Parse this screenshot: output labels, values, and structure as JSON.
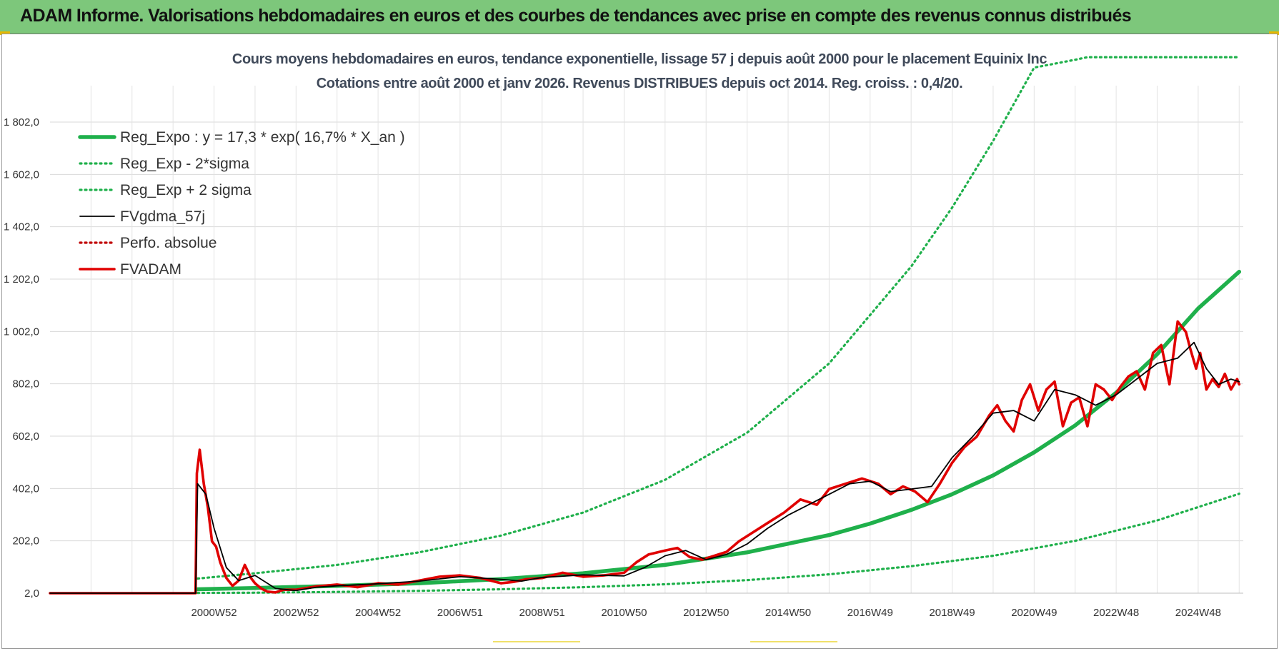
{
  "banner": {
    "title": "ADAM Informe. Valorisations hebdomadaires en euros et des courbes de tendances avec prise en compte des revenus connus distribués"
  },
  "chart_data": {
    "type": "line",
    "title": "Cours moyens hebdomadaires en euros, tendance exponentielle, lissage 57 j depuis août 2000 pour le placement Equinix Inc",
    "subtitle": "Cotations entre août 2000 et janv 2026. Revenus DISTRIBUES depuis oct 2014. Reg. croiss. : 0,4/20.",
    "ylim": [
      2,
      2050
    ],
    "yticks": [
      "2,0",
      "202,0",
      "402,0",
      "602,0",
      "802,0",
      "1 002,0",
      "1 202,0",
      "1 402,0",
      "1 602,0",
      "1 802,0"
    ],
    "ytick_values": [
      2,
      202,
      402,
      602,
      802,
      1002,
      1202,
      1402,
      1602,
      1802
    ],
    "xlim": [
      1997.0,
      2026.1
    ],
    "xticks": [
      "2000W52",
      "2002W52",
      "2004W52",
      "2006W51",
      "2008W51",
      "2010W50",
      "2012W50",
      "2014W50",
      "2016W49",
      "2018W49",
      "2020W49",
      "2022W48",
      "2024W48"
    ],
    "xtick_values": [
      2001.0,
      2003.0,
      2005.0,
      2007.0,
      2009.0,
      2011.0,
      2013.0,
      2015.0,
      2017.0,
      2019.0,
      2021.0,
      2023.0,
      2025.0
    ],
    "grid": true,
    "legend_position": "top-left",
    "series": [
      {
        "name": "Reg_Expo : y = 17,3 * exp( 16,7% *  X_an )",
        "color": "#1fb04b",
        "style": "solid",
        "x": [
          2000.6,
          2002,
          2004,
          2006,
          2008,
          2010,
          2012,
          2014,
          2016,
          2017,
          2018,
          2019,
          2020,
          2021,
          2022,
          2023,
          2024,
          2025,
          2026
        ],
        "values": [
          17,
          22,
          30,
          40,
          56,
          78,
          110,
          158,
          224,
          268,
          320,
          380,
          452,
          540,
          643,
          768,
          915,
          1090,
          1230
        ]
      },
      {
        "name": "Reg_Exp - 2*sigma",
        "color": "#1fb04b",
        "style": "dotted",
        "x": [
          2000.6,
          2002,
          2004,
          2006,
          2008,
          2010,
          2012,
          2014,
          2016,
          2018,
          2020,
          2022,
          2024,
          2026
        ],
        "values": [
          3,
          4,
          7,
          11,
          17,
          25,
          36,
          52,
          74,
          105,
          145,
          202,
          280,
          382
        ]
      },
      {
        "name": "Reg_Exp + 2 sigma",
        "color": "#1fb04b",
        "style": "dotted",
        "x": [
          2000.6,
          2002,
          2004,
          2006,
          2008,
          2010,
          2012,
          2014,
          2016,
          2018,
          2019,
          2020,
          2021,
          2022.0,
          2022.3,
          2026
        ],
        "values": [
          58,
          78,
          110,
          158,
          222,
          310,
          435,
          615,
          880,
          1250,
          1475,
          1730,
          2010,
          2040,
          2050,
          2050
        ]
      },
      {
        "name": "FVgdma_57j",
        "color": "#000000",
        "style": "solid",
        "x": [
          1997.0,
          2000.55,
          2000.6,
          2000.8,
          2001.0,
          2001.3,
          2001.6,
          2002.0,
          2002.5,
          2003.0,
          2003.5,
          2004.0,
          2005.0,
          2006.0,
          2007.0,
          2008.0,
          2008.5,
          2009.0,
          2010.0,
          2011.0,
          2011.5,
          2012.0,
          2012.5,
          2013.0,
          2013.5,
          2014.0,
          2014.5,
          2015.0,
          2015.5,
          2016.0,
          2016.5,
          2017.0,
          2017.5,
          2018.0,
          2018.5,
          2019.0,
          2019.5,
          2020.0,
          2020.5,
          2021.0,
          2021.5,
          2022.0,
          2022.5,
          2023.0,
          2023.5,
          2024.0,
          2024.5,
          2024.9,
          2025.2,
          2025.5,
          2025.8,
          2026.0
        ],
        "values": [
          2,
          2,
          420,
          380,
          250,
          100,
          50,
          70,
          20,
          12,
          25,
          30,
          38,
          48,
          65,
          55,
          48,
          62,
          72,
          68,
          100,
          145,
          165,
          130,
          150,
          190,
          250,
          300,
          340,
          380,
          420,
          430,
          390,
          400,
          410,
          520,
          600,
          690,
          700,
          660,
          780,
          760,
          720,
          760,
          820,
          880,
          900,
          960,
          860,
          800,
          820,
          810
        ]
      },
      {
        "name": "Perfo. absolue",
        "color": "#c00000",
        "style": "dotted",
        "x": [],
        "values": []
      },
      {
        "name": "FVADAM",
        "color": "#e00000",
        "style": "solid",
        "x": [
          1997.0,
          2000.55,
          2000.58,
          2000.65,
          2000.75,
          2000.85,
          2000.95,
          2001.05,
          2001.15,
          2001.3,
          2001.45,
          2001.6,
          2001.75,
          2001.9,
          2002.0,
          2002.15,
          2002.3,
          2002.5,
          2002.7,
          2003.0,
          2003.5,
          2004.0,
          2004.5,
          2005.0,
          2005.5,
          2006.0,
          2006.5,
          2007.0,
          2007.5,
          2008.0,
          2008.3,
          2008.6,
          2009.0,
          2009.5,
          2010.0,
          2010.5,
          2011.0,
          2011.3,
          2011.6,
          2012.0,
          2012.3,
          2012.6,
          2012.9,
          2013.2,
          2013.5,
          2013.8,
          2014.1,
          2014.5,
          2014.9,
          2015.3,
          2015.7,
          2016.0,
          2016.4,
          2016.8,
          2017.2,
          2017.5,
          2017.8,
          2018.1,
          2018.4,
          2018.7,
          2019.0,
          2019.3,
          2019.6,
          2019.9,
          2020.1,
          2020.3,
          2020.5,
          2020.7,
          2020.9,
          2021.1,
          2021.3,
          2021.5,
          2021.7,
          2021.9,
          2022.1,
          2022.3,
          2022.5,
          2022.7,
          2022.9,
          2023.1,
          2023.3,
          2023.5,
          2023.7,
          2023.9,
          2024.1,
          2024.3,
          2024.5,
          2024.7,
          2024.8,
          2024.95,
          2025.05,
          2025.2,
          2025.35,
          2025.5,
          2025.65,
          2025.8,
          2025.95,
          2026.0
        ],
        "values": [
          2,
          2,
          460,
          550,
          420,
          330,
          200,
          180,
          120,
          60,
          30,
          50,
          110,
          60,
          40,
          20,
          8,
          5,
          15,
          15,
          28,
          35,
          25,
          40,
          35,
          50,
          65,
          70,
          60,
          40,
          45,
          55,
          60,
          80,
          65,
          70,
          80,
          120,
          150,
          165,
          175,
          140,
          130,
          145,
          160,
          200,
          230,
          270,
          310,
          360,
          340,
          400,
          420,
          440,
          420,
          380,
          410,
          390,
          350,
          420,
          500,
          560,
          600,
          680,
          720,
          660,
          620,
          740,
          800,
          700,
          780,
          810,
          640,
          730,
          750,
          640,
          800,
          780,
          740,
          790,
          830,
          850,
          780,
          920,
          950,
          800,
          1040,
          1000,
          940,
          860,
          920,
          780,
          820,
          790,
          840,
          780,
          820,
          800
        ]
      }
    ]
  }
}
